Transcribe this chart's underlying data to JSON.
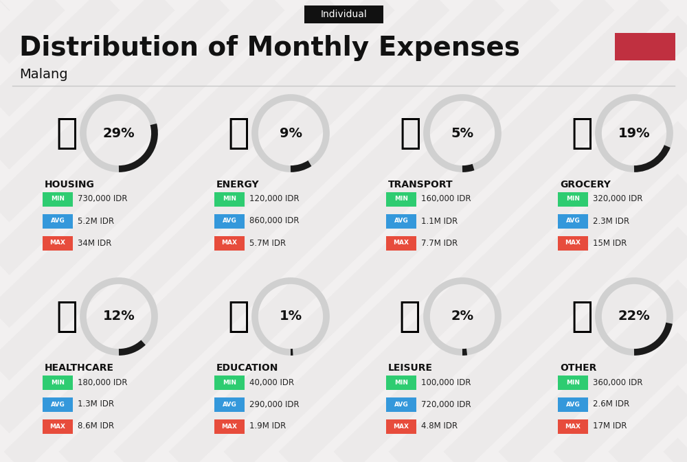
{
  "title": "Distribution of Monthly Expenses",
  "subtitle": "Malang",
  "tag": "Individual",
  "bg_color": "#f2f0f0",
  "title_color": "#111111",
  "tag_bg": "#111111",
  "tag_fg": "#ffffff",
  "red_rect_color": "#c03040",
  "categories": [
    {
      "name": "HOUSING",
      "pct": 29,
      "min": "730,000 IDR",
      "avg": "5.2M IDR",
      "max": "34M IDR",
      "row": 0,
      "col": 0
    },
    {
      "name": "ENERGY",
      "pct": 9,
      "min": "120,000 IDR",
      "avg": "860,000 IDR",
      "max": "5.7M IDR",
      "row": 0,
      "col": 1
    },
    {
      "name": "TRANSPORT",
      "pct": 5,
      "min": "160,000 IDR",
      "avg": "1.1M IDR",
      "max": "7.7M IDR",
      "row": 0,
      "col": 2
    },
    {
      "name": "GROCERY",
      "pct": 19,
      "min": "320,000 IDR",
      "avg": "2.3M IDR",
      "max": "15M IDR",
      "row": 0,
      "col": 3
    },
    {
      "name": "HEALTHCARE",
      "pct": 12,
      "min": "180,000 IDR",
      "avg": "1.3M IDR",
      "max": "8.6M IDR",
      "row": 1,
      "col": 0
    },
    {
      "name": "EDUCATION",
      "pct": 1,
      "min": "40,000 IDR",
      "avg": "290,000 IDR",
      "max": "1.9M IDR",
      "row": 1,
      "col": 1
    },
    {
      "name": "LEISURE",
      "pct": 2,
      "min": "100,000 IDR",
      "avg": "720,000 IDR",
      "max": "4.8M IDR",
      "row": 1,
      "col": 2
    },
    {
      "name": "OTHER",
      "pct": 22,
      "min": "360,000 IDR",
      "avg": "2.6M IDR",
      "max": "17M IDR",
      "row": 1,
      "col": 3
    }
  ],
  "min_color": "#2ecc71",
  "avg_color": "#3498db",
  "max_color": "#e74c3c",
  "circle_bg_color": "#d0d0d0",
  "circle_arc_color": "#1a1a1a",
  "value_color": "#222222",
  "stripe_color": "#e8e6e6",
  "figw": 10.0,
  "figh": 6.73
}
